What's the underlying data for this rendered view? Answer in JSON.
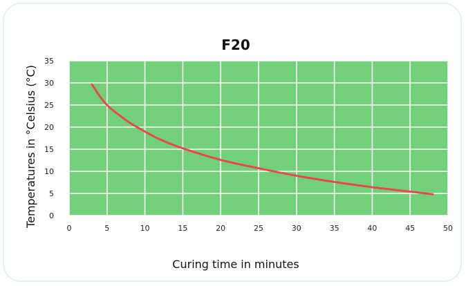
{
  "chart_data": {
    "type": "line",
    "title": "F20",
    "xlabel": "Curing time in minutes",
    "ylabel": "Temperatures in °Celsius (°C)",
    "xlim": [
      0,
      50
    ],
    "ylim": [
      0,
      35
    ],
    "x_ticks": [
      "0",
      "5",
      "10",
      "15",
      "20",
      "25",
      "30",
      "35",
      "40",
      "45",
      "50"
    ],
    "y_ticks": [
      "0",
      "5",
      "10",
      "15",
      "20",
      "25",
      "30",
      "35"
    ],
    "grid": true,
    "colors": {
      "plot_background": "#72d07b",
      "grid": "#ffffff",
      "line": "#e5484d"
    },
    "series": [
      {
        "x": [
          3,
          4,
          5,
          6,
          8,
          10,
          12,
          15,
          20,
          25,
          30,
          35,
          40,
          45,
          48
        ],
        "values": [
          29.7,
          27.1,
          25.0,
          23.5,
          21.0,
          19.0,
          17.2,
          15.2,
          12.6,
          10.7,
          9.0,
          7.6,
          6.4,
          5.4,
          4.8
        ]
      }
    ]
  }
}
